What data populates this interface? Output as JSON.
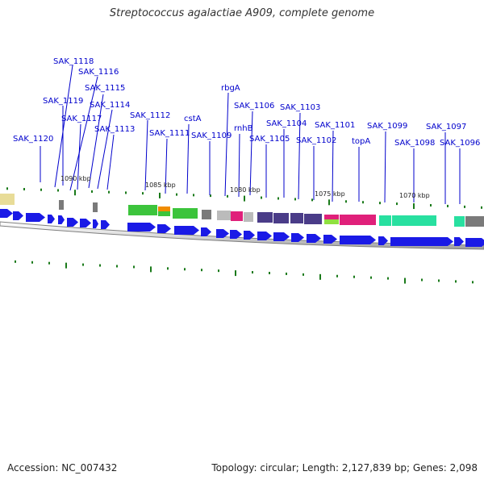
{
  "title": "Streptococcus agalactiae A909, complete genome",
  "footer": {
    "accession": "Accession: NC_007432",
    "topology": "Topology: circular; Length: 2,127,839 bp; Genes: 2,098"
  },
  "colors": {
    "cds": "#1a1ae6",
    "backbone": "#8c8c8c",
    "label": "#0000cc",
    "leader": "#0000cc",
    "tick": "#1a7a1a",
    "cog_yellow": "#e8dc98",
    "cog_green": "#3cc43c",
    "cog_orange": "#f08c00",
    "cog_gray": "#7a7a7a",
    "cog_silver": "#bbbbbb",
    "cog_magenta": "#e0207a",
    "cog_purple": "#4a3c88",
    "cog_teal": "#28e0a0",
    "cog_lime": "#90e040"
  },
  "scale_labels": [
    "1090 kbp",
    "1085 kbp",
    "1080 kbp",
    "1075 kbp",
    "1070 kbp"
  ],
  "genes": [
    "SAK_1118",
    "SAK_1116",
    "SAK_1115",
    "SAK_1119",
    "SAK_1114",
    "SAK_1117",
    "SAK_1113",
    "SAK_1112",
    "SAK_1111",
    "SAK_1120",
    "cstA",
    "SAK_1109",
    "rbgA",
    "SAK_1106",
    "rnhB",
    "SAK_1105",
    "SAK_1103",
    "SAK_1104",
    "SAK_1102",
    "SAK_1101",
    "topA",
    "SAK_1099",
    "SAK_1098",
    "SAK_1097",
    "SAK_1096"
  ]
}
